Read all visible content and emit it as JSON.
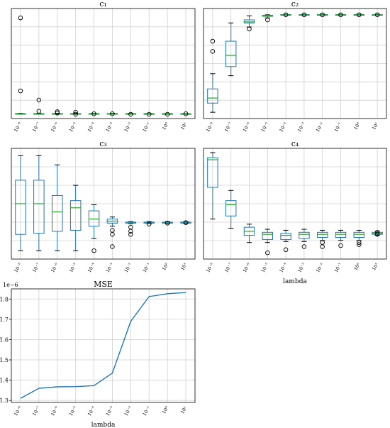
{
  "chart_data": [
    {
      "type": "box",
      "title": "c₁",
      "xlabel": "",
      "categories": [
        "10⁻⁸",
        "10⁻⁷",
        "10⁻⁶",
        "10⁻⁵",
        "10⁻⁴",
        "10⁻³",
        "10⁻²",
        "10⁻¹",
        "10⁰",
        "10¹"
      ],
      "ylim": [
        0,
        1
      ],
      "boxes": [
        {
          "low": 0.002,
          "q1": 0.004,
          "med": 0.005,
          "q3": 0.007,
          "high": 0.01,
          "fliers": [
            0.95,
            0.23
          ]
        },
        {
          "low": 0.002,
          "q1": 0.004,
          "med": 0.005,
          "q3": 0.007,
          "high": 0.01,
          "fliers": [
            0.14,
            0.03
          ]
        },
        {
          "low": 0.002,
          "q1": 0.004,
          "med": 0.005,
          "q3": 0.007,
          "high": 0.01,
          "fliers": [
            0.025,
            0.012
          ]
        },
        {
          "low": 0.002,
          "q1": 0.004,
          "med": 0.005,
          "q3": 0.007,
          "high": 0.01,
          "fliers": [
            0.02,
            0.0
          ]
        },
        {
          "low": 0.002,
          "q1": 0.004,
          "med": 0.005,
          "q3": 0.007,
          "high": 0.01,
          "fliers": [
            0.005
          ]
        },
        {
          "low": 0.002,
          "q1": 0.004,
          "med": 0.005,
          "q3": 0.007,
          "high": 0.01,
          "fliers": [
            0.005
          ]
        },
        {
          "low": 0.002,
          "q1": 0.004,
          "med": 0.005,
          "q3": 0.007,
          "high": 0.01,
          "fliers": [
            0.0
          ]
        },
        {
          "low": 0.003,
          "q1": 0.004,
          "med": 0.005,
          "q3": 0.006,
          "high": 0.008,
          "fliers": [
            0.0
          ]
        },
        {
          "low": 0.003,
          "q1": 0.004,
          "med": 0.005,
          "q3": 0.006,
          "high": 0.008,
          "fliers": [
            0.0
          ]
        },
        {
          "low": 0.003,
          "q1": 0.004,
          "med": 0.005,
          "q3": 0.006,
          "high": 0.008,
          "fliers": [
            0.005
          ]
        }
      ]
    },
    {
      "type": "box",
      "title": "c₂",
      "xlabel": "",
      "categories": [
        "10⁻⁸",
        "10⁻⁷",
        "10⁻⁶",
        "10⁻⁵",
        "10⁻⁴",
        "10⁻³",
        "10⁻²",
        "10⁻¹",
        "10⁰",
        "10¹"
      ],
      "ylim": [
        0,
        1
      ],
      "boxes": [
        {
          "low": 0.02,
          "q1": 0.11,
          "med": 0.16,
          "q3": 0.25,
          "high": 0.4,
          "fliers": [
            0.72,
            0.62
          ]
        },
        {
          "low": 0.38,
          "q1": 0.47,
          "med": 0.58,
          "q3": 0.72,
          "high": 0.9,
          "fliers": []
        },
        {
          "low": 0.86,
          "q1": 0.9,
          "med": 0.91,
          "q3": 0.93,
          "high": 0.97,
          "fliers": [
            0.84
          ]
        },
        {
          "low": 0.95,
          "q1": 0.965,
          "med": 0.97,
          "q3": 0.975,
          "high": 0.98,
          "fliers": [
            0.93
          ]
        },
        {
          "low": 0.975,
          "q1": 0.978,
          "med": 0.98,
          "q3": 0.982,
          "high": 0.985,
          "fliers": [
            0.98
          ]
        },
        {
          "low": 0.975,
          "q1": 0.978,
          "med": 0.98,
          "q3": 0.982,
          "high": 0.985,
          "fliers": [
            0.98
          ]
        },
        {
          "low": 0.975,
          "q1": 0.978,
          "med": 0.98,
          "q3": 0.982,
          "high": 0.985,
          "fliers": [
            0.98
          ]
        },
        {
          "low": 0.975,
          "q1": 0.978,
          "med": 0.98,
          "q3": 0.982,
          "high": 0.985,
          "fliers": [
            0.98
          ]
        },
        {
          "low": 0.975,
          "q1": 0.978,
          "med": 0.98,
          "q3": 0.982,
          "high": 0.985,
          "fliers": [
            0.98
          ]
        },
        {
          "low": 0.975,
          "q1": 0.978,
          "med": 0.98,
          "q3": 0.982,
          "high": 0.985,
          "fliers": [
            0.98
          ]
        }
      ]
    },
    {
      "type": "box",
      "title": "c₃",
      "xlabel": "",
      "categories": [
        "10⁻⁸",
        "10⁻⁷",
        "10⁻⁶",
        "10⁻⁵",
        "10⁻⁴",
        "10⁻³",
        "10⁻²",
        "10⁻¹",
        "10⁰",
        "10¹"
      ],
      "ylim": [
        0,
        1
      ],
      "boxes": [
        {
          "low": 0.04,
          "q1": 0.2,
          "med": 0.5,
          "q3": 0.73,
          "high": 0.97,
          "fliers": []
        },
        {
          "low": 0.04,
          "q1": 0.21,
          "med": 0.5,
          "q3": 0.73,
          "high": 0.97,
          "fliers": []
        },
        {
          "low": 0.04,
          "q1": 0.23,
          "med": 0.42,
          "q3": 0.58,
          "high": 0.88,
          "fliers": []
        },
        {
          "low": 0.04,
          "q1": 0.24,
          "med": 0.46,
          "q3": 0.53,
          "high": 0.68,
          "fliers": []
        },
        {
          "low": 0.16,
          "q1": 0.28,
          "med": 0.35,
          "q3": 0.43,
          "high": 0.49,
          "fliers": [
            0.04
          ]
        },
        {
          "low": 0.28,
          "q1": 0.31,
          "med": 0.33,
          "q3": 0.35,
          "high": 0.37,
          "fliers": [
            0.24,
            0.2,
            0.08
          ]
        },
        {
          "low": 0.305,
          "q1": 0.31,
          "med": 0.315,
          "q3": 0.32,
          "high": 0.325,
          "fliers": [
            0.27,
            0.23,
            0.2
          ]
        },
        {
          "low": 0.305,
          "q1": 0.31,
          "med": 0.315,
          "q3": 0.32,
          "high": 0.325,
          "fliers": [
            0.3
          ]
        },
        {
          "low": 0.305,
          "q1": 0.31,
          "med": 0.315,
          "q3": 0.32,
          "high": 0.325,
          "fliers": [
            0.31
          ]
        },
        {
          "low": 0.305,
          "q1": 0.31,
          "med": 0.315,
          "q3": 0.32,
          "high": 0.325,
          "fliers": [
            0.315
          ]
        }
      ]
    },
    {
      "type": "box",
      "title": "c₄",
      "xlabel": "lambda",
      "categories": [
        "10⁻⁸",
        "10⁻⁷",
        "10⁻⁶",
        "10⁻⁵",
        "10⁻⁴",
        "10⁻³",
        "10⁻²",
        "10⁻¹",
        "10⁰",
        "10¹"
      ],
      "ylim": [
        0,
        1
      ],
      "boxes": [
        {
          "low": 0.35,
          "q1": 0.66,
          "med": 0.93,
          "q3": 0.95,
          "high": 1.0,
          "fliers": []
        },
        {
          "low": 0.26,
          "q1": 0.38,
          "med": 0.49,
          "q3": 0.53,
          "high": 0.63,
          "fliers": []
        },
        {
          "low": 0.12,
          "q1": 0.19,
          "med": 0.23,
          "q3": 0.27,
          "high": 0.3,
          "fliers": []
        },
        {
          "low": 0.12,
          "q1": 0.15,
          "med": 0.2,
          "q3": 0.22,
          "high": 0.25,
          "fliers": [
            0.02
          ]
        },
        {
          "low": 0.13,
          "q1": 0.15,
          "med": 0.19,
          "q3": 0.21,
          "high": 0.24,
          "fliers": [
            0.05
          ]
        },
        {
          "low": 0.13,
          "q1": 0.16,
          "med": 0.2,
          "q3": 0.22,
          "high": 0.25,
          "fliers": [
            0.08
          ]
        },
        {
          "low": 0.14,
          "q1": 0.17,
          "med": 0.2,
          "q3": 0.22,
          "high": 0.24,
          "fliers": [
            0.12,
            0.08
          ]
        },
        {
          "low": 0.14,
          "q1": 0.17,
          "med": 0.2,
          "q3": 0.22,
          "high": 0.24,
          "fliers": [
            0.09
          ]
        },
        {
          "low": 0.14,
          "q1": 0.17,
          "med": 0.2,
          "q3": 0.22,
          "high": 0.24,
          "fliers": [
            0.1,
            0.12
          ]
        },
        {
          "low": 0.19,
          "q1": 0.2,
          "med": 0.21,
          "q3": 0.22,
          "high": 0.23,
          "fliers": [
            0.2,
            0.22
          ]
        }
      ]
    },
    {
      "type": "line",
      "title": "MSE",
      "xlabel": "lambda",
      "ylabel": "",
      "offset_text": "1e−6",
      "categories": [
        "10⁻⁸",
        "10⁻⁷",
        "10⁻⁶",
        "10⁻⁵",
        "10⁻⁴",
        "10⁻³",
        "10⁻²",
        "10⁻¹",
        "10⁰",
        "10¹"
      ],
      "values": [
        1.31,
        1.36,
        1.367,
        1.368,
        1.373,
        1.435,
        1.69,
        1.812,
        1.826,
        1.832
      ],
      "yticks": [
        "1.3",
        "1.4",
        "1.5",
        "1.6",
        "1.7",
        "1.8"
      ],
      "ytick_values": [
        1.3,
        1.4,
        1.5,
        1.6,
        1.7,
        1.8
      ],
      "ylim": [
        1.29,
        1.85
      ]
    }
  ],
  "colors": {
    "box": "#1f77b4",
    "median": "#2ca02c",
    "grid": "#d0d0d0",
    "line": "#1f77b4"
  }
}
